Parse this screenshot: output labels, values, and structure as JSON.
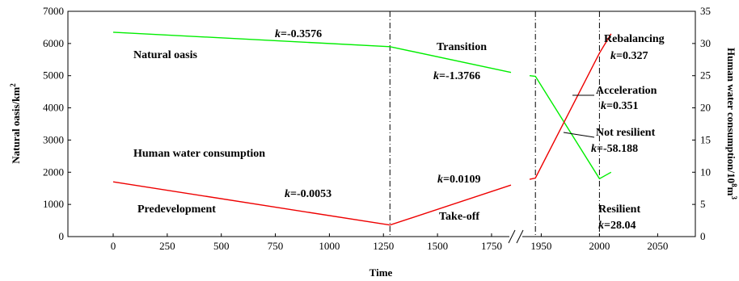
{
  "chart_data": {
    "type": "line",
    "xlabel": "Time",
    "ylabel_left": "Natural oasis/km",
    "ylabel_left_sup": "2",
    "ylabel_right": "Human water consumption/10",
    "ylabel_right_sup1": "8",
    "ylabel_right_mid": "m",
    "ylabel_right_sup2": "3",
    "ylim_left": [
      0,
      7000
    ],
    "ylim_right": [
      0,
      35
    ],
    "x_ticks_before_break": [
      "0",
      "250",
      "500",
      "750",
      "1000",
      "1250",
      "1500",
      "1750"
    ],
    "x_ticks_after_break": [
      "1950",
      "2000",
      "2050"
    ],
    "y_ticks_left": [
      "0",
      "1000",
      "2000",
      "3000",
      "4000",
      "5000",
      "6000",
      "7000"
    ],
    "y_ticks_right": [
      "0",
      "5",
      "10",
      "15",
      "20",
      "25",
      "30",
      "35"
    ],
    "series": [
      {
        "axis": "left",
        "color": "#00ee00",
        "segments": [
          [
            [
              0,
              6350
            ],
            [
              1280,
              5900
            ],
            [
              1840,
              5100
            ]
          ],
          [
            [
              1940,
              5000
            ],
            [
              1945,
              4980
            ],
            [
              2000,
              1800
            ],
            [
              2010,
              2000
            ]
          ]
        ]
      },
      {
        "axis": "right",
        "color": "#ee0000",
        "segments": [
          [
            [
              0,
              8.5
            ],
            [
              1280,
              1.8
            ],
            [
              1840,
              8.0
            ]
          ],
          [
            [
              1940,
              8.9
            ],
            [
              1945,
              9.1
            ],
            [
              2000,
              28.5
            ],
            [
              2010,
              31.5
            ]
          ]
        ]
      }
    ],
    "vertical_lines_x": [
      1280,
      1945,
      2000
    ],
    "annotations": {
      "natural_oasis": "Natural oasis",
      "human_water": "Human water consumption",
      "predevelopment": "Predevelopment",
      "takeoff": "Take-off",
      "transition": "Transition",
      "rebalancing": "Rebalancing",
      "acceleration": "Acceleration",
      "not_resilient": "Not resilient",
      "resilient": "Resilient",
      "k_symbol": "k",
      "k_green1": "=-0.3576",
      "k_green2": "=-1.3766",
      "k_red1": "=-0.0053",
      "k_red2": "=0.0109",
      "k_rebalancing": "=0.327",
      "k_acceleration": "=0.351",
      "k_not_resilient": "=-58.188",
      "k_resilient": "=28.04"
    }
  }
}
